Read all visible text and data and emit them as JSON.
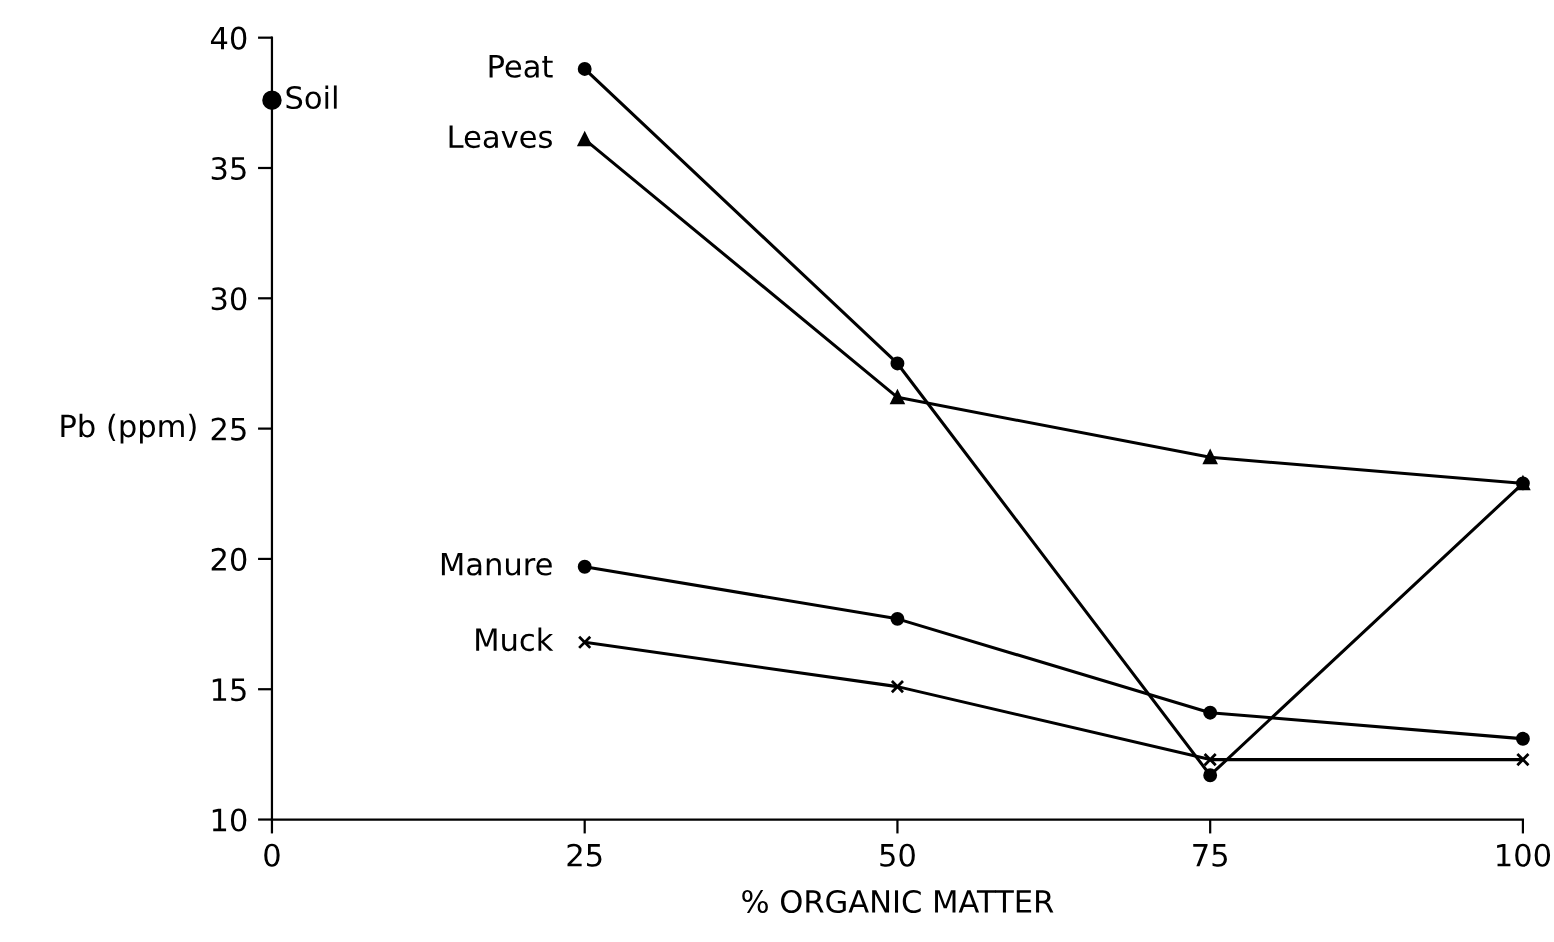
{
  "chart_data": {
    "type": "line",
    "xlabel": "% ORGANIC MATTER",
    "ylabel": "Pb (ppm)",
    "xlim": [
      0,
      100
    ],
    "ylim": [
      10,
      40
    ],
    "xticks": [
      0,
      25,
      50,
      75,
      100
    ],
    "yticks": [
      10,
      15,
      20,
      25,
      30,
      35,
      40
    ],
    "grid": false,
    "legend": false,
    "line_style": "solid",
    "series": [
      {
        "name": "Soil",
        "color": "#000000",
        "marker": "circle",
        "x": [
          0
        ],
        "values": [
          37.6
        ]
      },
      {
        "name": "Peat",
        "color": "#000000",
        "marker": "circle",
        "x": [
          25,
          50,
          75,
          100
        ],
        "values": [
          38.8,
          27.5,
          11.7,
          22.9
        ]
      },
      {
        "name": "Leaves",
        "color": "#000000",
        "marker": "triangle",
        "x": [
          25,
          50,
          75,
          100
        ],
        "values": [
          36.1,
          26.2,
          23.9,
          22.9
        ]
      },
      {
        "name": "Manure",
        "color": "#000000",
        "marker": "circle",
        "x": [
          25,
          50,
          75,
          100
        ],
        "values": [
          19.7,
          17.7,
          14.1,
          13.1
        ]
      },
      {
        "name": "Muck",
        "color": "#000000",
        "marker": "cross",
        "x": [
          25,
          50,
          75,
          100
        ],
        "values": [
          16.8,
          15.1,
          12.3,
          12.3
        ]
      }
    ]
  }
}
